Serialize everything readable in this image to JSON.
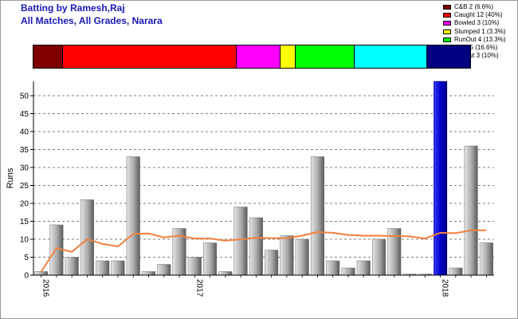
{
  "title_line1": "Batting by Ramesh,Raj",
  "title_line2": "All Matches, All Grades, Narara",
  "legend": [
    {
      "label": "C&B 2 (6.6%)",
      "color": "#800000",
      "share": 6.6
    },
    {
      "label": "Caught 12 (40%)",
      "color": "#ff0000",
      "share": 40
    },
    {
      "label": "Bowled 3 (10%)",
      "color": "#ff00ff",
      "share": 10
    },
    {
      "label": "Stumped 1 (3.3%)",
      "color": "#ffff00",
      "share": 3.3
    },
    {
      "label": "RunOut 4 (13.3%)",
      "color": "#00ff00",
      "share": 13.3
    },
    {
      "label": "LBW 5 (16.6%)",
      "color": "#00ffff",
      "share": 16.6
    },
    {
      "label": "NotOut 3 (10%)",
      "color": "#000080",
      "share": 10
    }
  ],
  "chart_data": {
    "type": "bar",
    "ylabel": "Runs",
    "ylim": [
      0,
      54
    ],
    "yticks": [
      0,
      5,
      10,
      15,
      20,
      25,
      30,
      35,
      40,
      45,
      50
    ],
    "grid": true,
    "values": [
      1,
      14,
      5,
      21,
      4,
      4,
      33,
      1,
      3,
      13,
      5,
      9,
      1,
      19,
      16,
      7,
      11,
      10,
      33,
      4,
      2,
      4,
      10,
      13,
      0.3,
      0.3,
      54,
      2,
      36,
      9
    ],
    "highlight_index": 26,
    "bar_color": "#a8a8a8",
    "highlight_color": "#0000cc",
    "average_line": [
      1,
      7.5,
      6.5,
      10,
      8.7,
      8,
      11.5,
      11.6,
      10.5,
      11,
      10.2,
      10.2,
      9.6,
      10,
      10.4,
      10.3,
      10.3,
      11,
      12,
      11.8,
      11.2,
      11,
      11,
      10.9,
      10.8,
      10.2,
      11.8,
      11.7,
      12.5,
      12.5
    ],
    "average_color": "#f08040",
    "x_tick_labels": [
      {
        "label": "2016",
        "index": 0
      },
      {
        "label": "2017",
        "index": 10
      },
      {
        "label": "2018",
        "index": 26
      }
    ]
  }
}
